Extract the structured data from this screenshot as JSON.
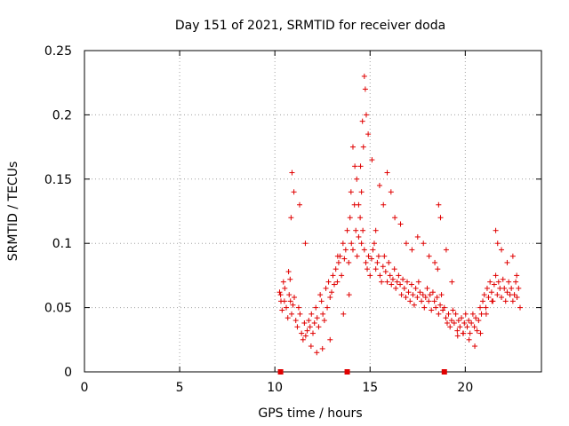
{
  "chart_data": {
    "type": "scatter",
    "title": "Day 151 of 2021, SRMTID for receiver doda",
    "xlabel": "GPS time / hours",
    "ylabel": "SRMTID / TECUs",
    "xlim": [
      0,
      24
    ],
    "ylim": [
      0,
      0.25
    ],
    "xticks": [
      0,
      5,
      10,
      15,
      20
    ],
    "xtick_labels": [
      "0",
      "5",
      "10",
      "15",
      "20"
    ],
    "yticks": [
      0,
      0.05,
      0.1,
      0.15,
      0.2,
      0.25
    ],
    "ytick_labels": [
      "0",
      "0.05",
      "0.1",
      "0.15",
      "0.2",
      "0.25"
    ],
    "grid": true,
    "marker": "+",
    "color": "#e00000",
    "gap_markers_x": [
      10.3,
      13.8,
      18.9
    ],
    "series": [
      {
        "name": "SRMTID",
        "x": [
          10.25,
          10.32,
          10.38,
          10.45,
          10.52,
          10.6,
          10.68,
          10.75,
          10.82,
          10.88,
          10.95,
          11.02,
          11.1,
          11.18,
          11.25,
          11.32,
          11.4,
          11.48,
          11.55,
          11.62,
          11.7,
          11.78,
          11.85,
          11.92,
          12.0,
          12.08,
          12.15,
          12.22,
          12.3,
          12.38,
          12.45,
          12.52,
          12.6,
          12.68,
          12.75,
          12.82,
          12.9,
          12.98,
          13.05,
          13.12,
          13.2,
          13.28,
          13.35,
          13.42,
          13.5,
          13.58,
          13.65,
          13.72,
          13.8,
          13.88,
          13.95,
          14.02,
          14.1,
          14.18,
          14.25,
          14.32,
          14.4,
          14.48,
          14.55,
          14.62,
          14.7,
          14.78,
          14.85,
          14.92,
          15.0,
          15.08,
          15.15,
          15.22,
          15.3,
          15.38,
          15.45,
          15.52,
          15.6,
          15.68,
          15.75,
          15.82,
          15.9,
          15.98,
          16.05,
          16.12,
          16.2,
          16.28,
          16.35,
          16.42,
          16.5,
          16.58,
          16.65,
          16.72,
          16.8,
          16.88,
          16.95,
          17.02,
          17.1,
          17.18,
          17.25,
          17.32,
          17.4,
          17.48,
          17.55,
          17.62,
          17.7,
          17.78,
          17.85,
          17.92,
          18.0,
          18.08,
          18.15,
          18.22,
          18.3,
          18.38,
          18.45,
          18.52,
          18.6,
          18.68,
          18.75,
          18.82,
          18.9,
          18.98,
          19.05,
          19.12,
          19.2,
          19.28,
          19.35,
          19.42,
          19.5,
          19.58,
          19.65,
          19.72,
          19.8,
          19.88,
          19.95,
          20.02,
          20.1,
          20.18,
          20.25,
          20.32,
          20.4,
          20.48,
          20.55,
          20.62,
          20.7,
          20.78,
          20.85,
          20.92,
          21.0,
          21.08,
          21.15,
          21.22,
          21.3,
          21.38,
          21.45,
          21.52,
          21.6,
          21.68,
          21.75,
          21.82,
          21.9,
          21.98,
          22.05,
          22.12,
          22.2,
          22.28,
          22.35,
          22.42,
          22.5,
          22.58,
          22.65,
          22.72,
          22.8,
          22.88,
          10.3,
          10.5,
          10.72,
          10.8,
          10.85,
          10.9,
          11.0,
          11.3,
          11.6,
          11.9,
          12.2,
          12.5,
          12.9,
          13.3,
          13.6,
          13.9,
          14.0,
          14.1,
          14.2,
          14.3,
          14.4,
          14.5,
          14.55,
          14.6,
          14.65,
          14.7,
          14.75,
          14.8,
          14.9,
          15.1,
          15.3,
          15.5,
          15.7,
          15.9,
          16.1,
          16.3,
          16.6,
          16.9,
          17.2,
          17.5,
          17.8,
          18.1,
          18.4,
          18.55,
          18.6,
          18.7,
          19.0,
          19.3,
          19.6,
          19.9,
          20.2,
          20.5,
          20.8,
          21.1,
          21.4,
          21.6,
          21.7,
          21.9,
          22.2,
          22.5,
          22.7
        ],
        "y": [
          0.062,
          0.055,
          0.048,
          0.07,
          0.065,
          0.05,
          0.042,
          0.06,
          0.055,
          0.045,
          0.052,
          0.058,
          0.04,
          0.035,
          0.05,
          0.045,
          0.03,
          0.025,
          0.038,
          0.028,
          0.032,
          0.04,
          0.035,
          0.045,
          0.03,
          0.038,
          0.05,
          0.042,
          0.035,
          0.06,
          0.055,
          0.045,
          0.04,
          0.065,
          0.05,
          0.07,
          0.058,
          0.062,
          0.075,
          0.068,
          0.08,
          0.07,
          0.085,
          0.09,
          0.075,
          0.1,
          0.088,
          0.095,
          0.11,
          0.085,
          0.12,
          0.1,
          0.095,
          0.13,
          0.11,
          0.09,
          0.105,
          0.12,
          0.1,
          0.11,
          0.095,
          0.085,
          0.08,
          0.09,
          0.075,
          0.088,
          0.095,
          0.1,
          0.08,
          0.085,
          0.09,
          0.075,
          0.07,
          0.082,
          0.09,
          0.078,
          0.07,
          0.085,
          0.075,
          0.068,
          0.072,
          0.08,
          0.065,
          0.07,
          0.075,
          0.068,
          0.06,
          0.072,
          0.065,
          0.058,
          0.07,
          0.062,
          0.055,
          0.068,
          0.06,
          0.052,
          0.065,
          0.058,
          0.07,
          0.062,
          0.055,
          0.06,
          0.05,
          0.058,
          0.065,
          0.055,
          0.06,
          0.048,
          0.062,
          0.055,
          0.05,
          0.058,
          0.045,
          0.052,
          0.06,
          0.048,
          0.05,
          0.042,
          0.038,
          0.045,
          0.035,
          0.04,
          0.048,
          0.038,
          0.045,
          0.032,
          0.04,
          0.035,
          0.042,
          0.03,
          0.038,
          0.045,
          0.035,
          0.04,
          0.03,
          0.038,
          0.045,
          0.035,
          0.042,
          0.032,
          0.04,
          0.05,
          0.045,
          0.055,
          0.06,
          0.05,
          0.065,
          0.058,
          0.07,
          0.062,
          0.055,
          0.068,
          0.075,
          0.06,
          0.07,
          0.065,
          0.058,
          0.072,
          0.065,
          0.055,
          0.062,
          0.07,
          0.06,
          0.065,
          0.055,
          0.06,
          0.07,
          0.058,
          0.065,
          0.05,
          0.06,
          0.055,
          0.078,
          0.072,
          0.12,
          0.155,
          0.14,
          0.13,
          0.1,
          0.02,
          0.015,
          0.018,
          0.025,
          0.09,
          0.045,
          0.06,
          0.14,
          0.175,
          0.16,
          0.15,
          0.13,
          0.16,
          0.14,
          0.195,
          0.175,
          0.23,
          0.22,
          0.2,
          0.185,
          0.165,
          0.11,
          0.145,
          0.13,
          0.155,
          0.14,
          0.12,
          0.115,
          0.1,
          0.095,
          0.105,
          0.1,
          0.09,
          0.085,
          0.08,
          0.13,
          0.12,
          0.095,
          0.07,
          0.028,
          0.03,
          0.025,
          0.02,
          0.03,
          0.045,
          0.055,
          0.11,
          0.1,
          0.095,
          0.085,
          0.09,
          0.075
        ]
      }
    ]
  }
}
